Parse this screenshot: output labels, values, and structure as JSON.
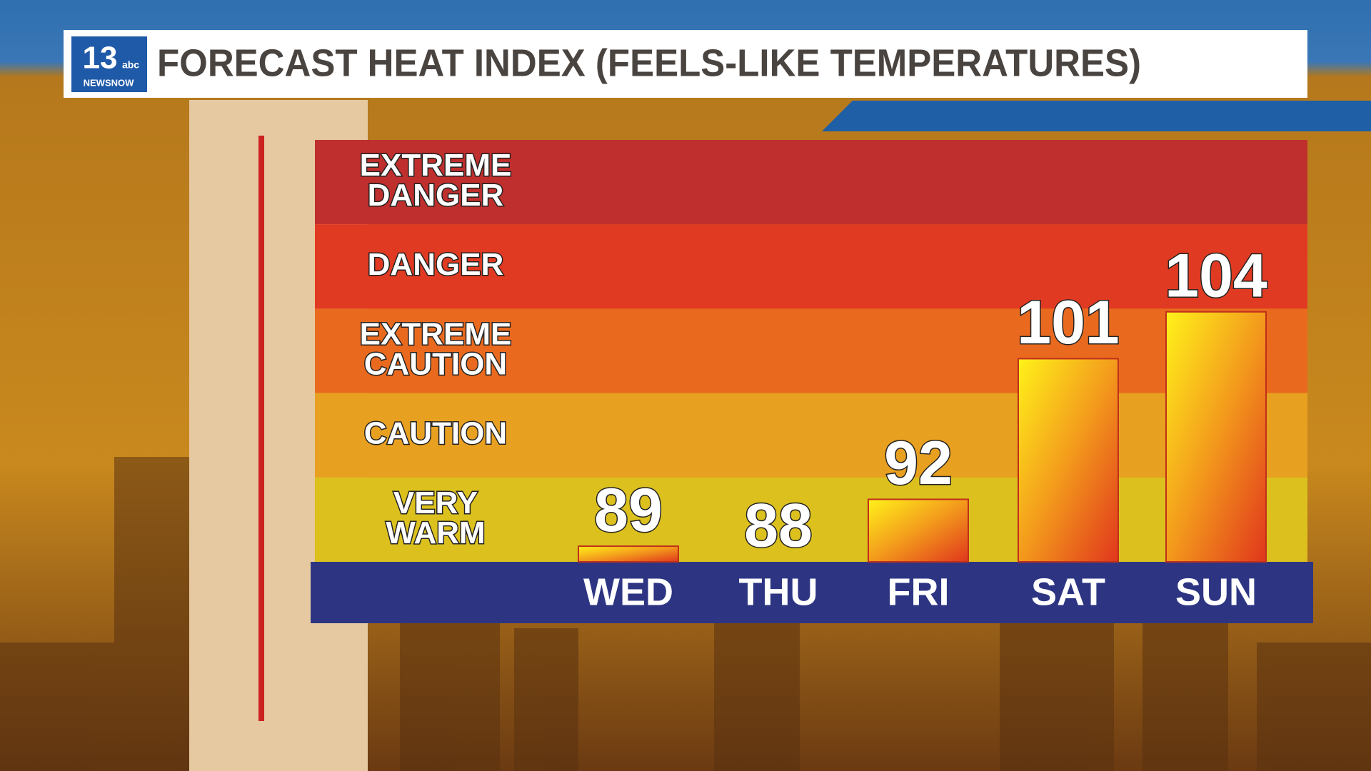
{
  "logo": {
    "number": "13",
    "network": "abc",
    "brand": "NEWSNOW"
  },
  "chart_data": {
    "type": "bar",
    "title": "FORECAST HEAT INDEX (FEELS-LIKE TEMPERATURES)",
    "bands": [
      "EXTREME DANGER",
      "DANGER",
      "EXTREME CAUTION",
      "CAUTION",
      "VERY WARM"
    ],
    "band_colors": [
      "#bf2f2d",
      "#e13a22",
      "#e96a1f",
      "#e8a020",
      "#dcc11e"
    ],
    "categories": [
      "WED",
      "THU",
      "FRI",
      "SAT",
      "SUN"
    ],
    "values": [
      89,
      88,
      92,
      101,
      104
    ],
    "ylim": [
      88,
      115
    ]
  }
}
